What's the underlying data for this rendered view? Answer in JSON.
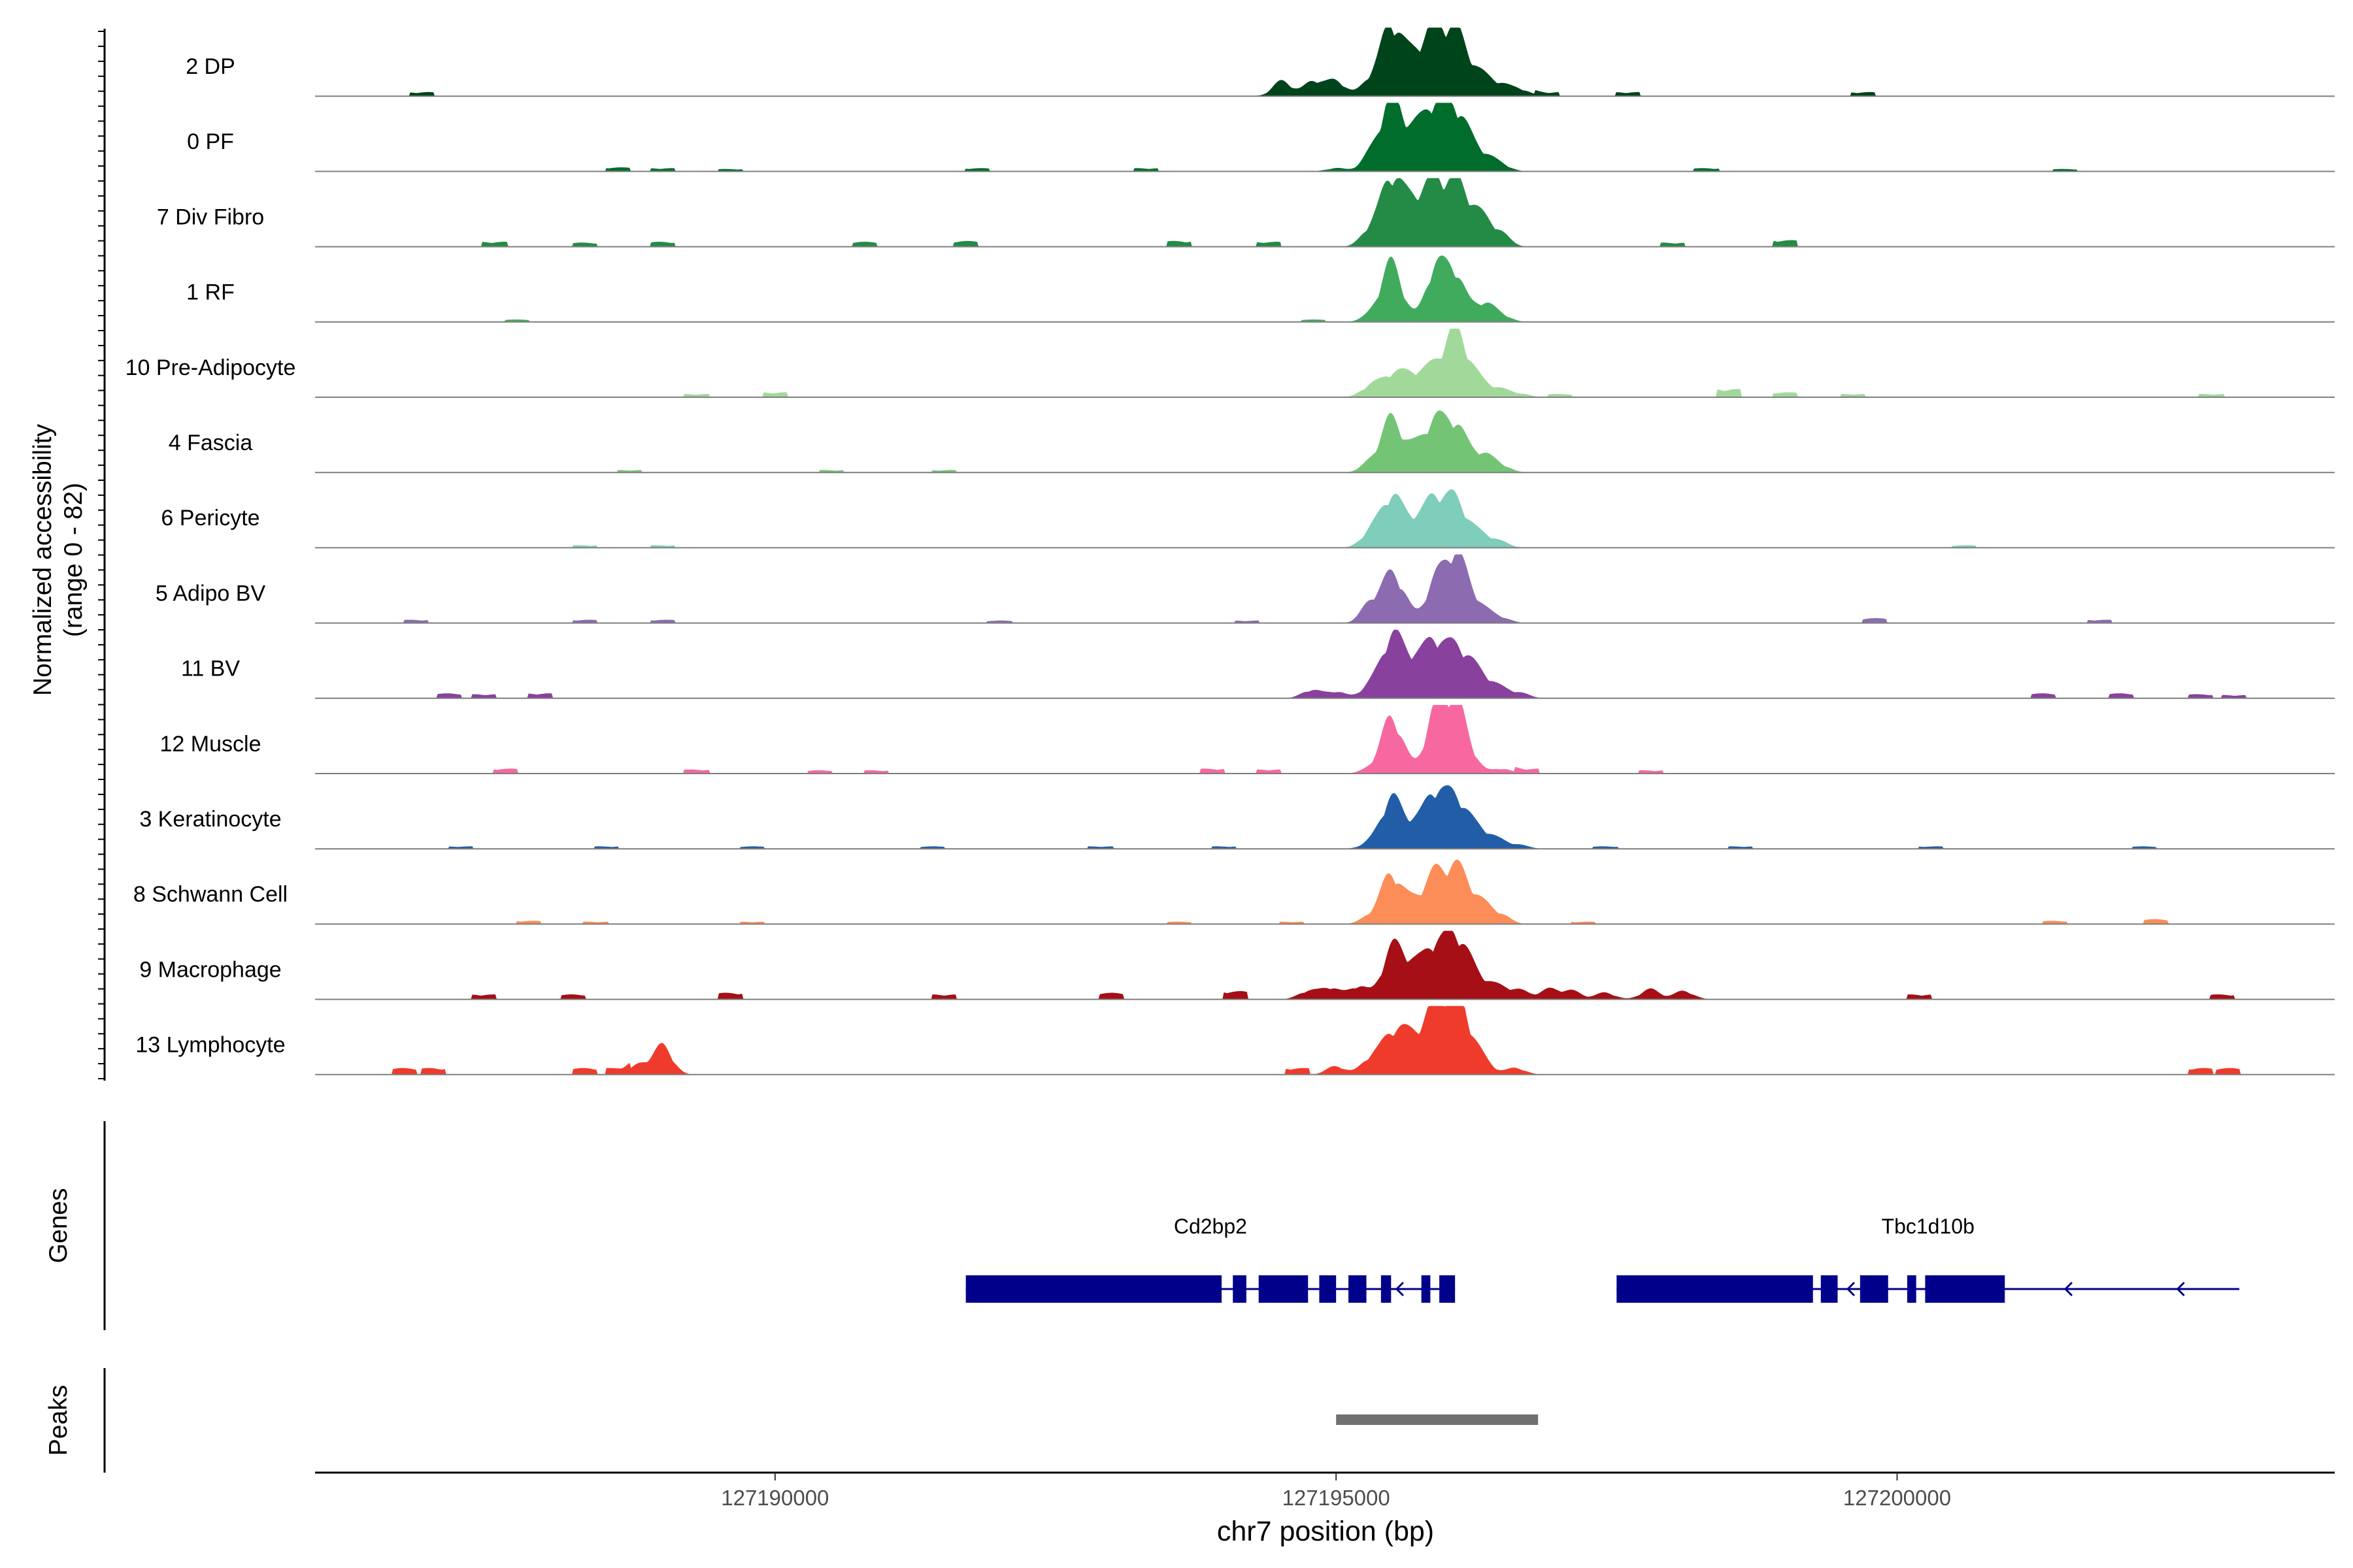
{
  "chart_data": {
    "type": "area",
    "title": "",
    "ylabel": "Normalized accessibility",
    "ylabel_range": "(range 0 - 82)",
    "y_range": [
      0,
      82
    ],
    "xlabel": "chr7 position (bp)",
    "x_range": [
      127185900,
      127203900
    ],
    "x_ticks": [
      127190000,
      127195000,
      127200000
    ],
    "x_tick_labels": [
      "127190000",
      "127195000",
      "127200000"
    ],
    "grid": false,
    "legend": "none",
    "tracks": [
      {
        "label": "2 DP",
        "color": "#00441b",
        "peaks": [
          [
            127194520,
            18
          ],
          [
            127194800,
            18
          ],
          [
            127195000,
            18
          ],
          [
            127195310,
            20
          ],
          [
            127195480,
            74
          ],
          [
            127195590,
            26
          ],
          [
            127195720,
            40
          ],
          [
            127195880,
            74
          ],
          [
            127196050,
            66
          ],
          [
            127196180,
            28
          ],
          [
            127196320,
            18
          ],
          [
            127196470,
            12
          ],
          [
            127196640,
            8
          ]
        ],
        "noise": [
          [
            127186850,
            5
          ],
          [
            127196880,
            5
          ],
          [
            127197600,
            5
          ],
          [
            127199700,
            5
          ]
        ]
      },
      {
        "label": "0 PF",
        "color": "#006d2c",
        "peaks": [
          [
            127195000,
            4
          ],
          [
            127195310,
            20
          ],
          [
            127195480,
            76
          ],
          [
            127195590,
            26
          ],
          [
            127195720,
            40
          ],
          [
            127195880,
            72
          ],
          [
            127196050,
            64
          ],
          [
            127196180,
            28
          ],
          [
            127196320,
            16
          ],
          [
            127196470,
            8
          ]
        ],
        "noise": [
          [
            127188600,
            5
          ],
          [
            127189000,
            4
          ],
          [
            127189600,
            3
          ],
          [
            127191800,
            4
          ],
          [
            127193300,
            4
          ],
          [
            127198300,
            4
          ],
          [
            127201500,
            3
          ]
        ]
      },
      {
        "label": "7 Div Fibro",
        "color": "#238b45",
        "peaks": [
          [
            127195310,
            22
          ],
          [
            127195480,
            70
          ],
          [
            127195590,
            30
          ],
          [
            127195720,
            44
          ],
          [
            127195880,
            70
          ],
          [
            127196050,
            62
          ],
          [
            127196180,
            36
          ],
          [
            127196320,
            26
          ],
          [
            127196470,
            14
          ]
        ],
        "noise": [
          [
            127187500,
            6
          ],
          [
            127188300,
            5
          ],
          [
            127189000,
            6
          ],
          [
            127190800,
            6
          ],
          [
            127191700,
            7
          ],
          [
            127193600,
            7
          ],
          [
            127194400,
            6
          ],
          [
            127198000,
            5
          ],
          [
            127199000,
            8
          ]
        ]
      },
      {
        "label": "1 RF",
        "color": "#41ab5d",
        "peaks": [
          [
            127195310,
            8
          ],
          [
            127195480,
            64
          ],
          [
            127195590,
            14
          ],
          [
            127195880,
            62
          ],
          [
            127196050,
            56
          ],
          [
            127196180,
            8
          ],
          [
            127196320,
            20
          ],
          [
            127196470,
            8
          ]
        ],
        "noise": [
          [
            127187700,
            3
          ],
          [
            127194800,
            3
          ]
        ]
      },
      {
        "label": "10 Pre-Adipocyte",
        "color": "#a1d99b",
        "peaks": [
          [
            127195310,
            14
          ],
          [
            127195480,
            20
          ],
          [
            127195590,
            16
          ],
          [
            127195720,
            22
          ],
          [
            127195880,
            32
          ],
          [
            127196050,
            70
          ],
          [
            127196180,
            28
          ],
          [
            127196320,
            12
          ],
          [
            127196470,
            8
          ],
          [
            127196640,
            4
          ]
        ],
        "noise": [
          [
            127189300,
            4
          ],
          [
            127190000,
            6
          ],
          [
            127197000,
            4
          ],
          [
            127198500,
            10
          ],
          [
            127199000,
            6
          ],
          [
            127199600,
            4
          ],
          [
            127202800,
            4
          ]
        ]
      },
      {
        "label": "4 Fascia",
        "color": "#74c476",
        "peaks": [
          [
            127195310,
            12
          ],
          [
            127195480,
            56
          ],
          [
            127195590,
            16
          ],
          [
            127195720,
            24
          ],
          [
            127195880,
            56
          ],
          [
            127196050,
            52
          ],
          [
            127196180,
            16
          ],
          [
            127196320,
            18
          ],
          [
            127196470,
            8
          ]
        ],
        "noise": [
          [
            127188700,
            3
          ],
          [
            127190500,
            3
          ],
          [
            127191500,
            3
          ]
        ]
      },
      {
        "label": "6 Pericyte",
        "color": "#7fcdbb",
        "peaks": [
          [
            127195310,
            20
          ],
          [
            127195480,
            52
          ],
          [
            127195590,
            20
          ],
          [
            127195720,
            26
          ],
          [
            127195880,
            54
          ],
          [
            127196050,
            50
          ],
          [
            127196180,
            18
          ],
          [
            127196320,
            12
          ],
          [
            127196470,
            6
          ]
        ],
        "noise": [
          [
            127188300,
            3
          ],
          [
            127189000,
            3
          ],
          [
            127200600,
            3
          ]
        ]
      },
      {
        "label": "5 Adipo BV",
        "color": "#8c6bb1",
        "peaks": [
          [
            127195310,
            24
          ],
          [
            127195480,
            46
          ],
          [
            127195590,
            24
          ],
          [
            127195880,
            48
          ],
          [
            127196050,
            72
          ],
          [
            127196180,
            30
          ],
          [
            127196320,
            12
          ],
          [
            127196470,
            6
          ]
        ],
        "noise": [
          [
            127186800,
            4
          ],
          [
            127188300,
            4
          ],
          [
            127189000,
            4
          ],
          [
            127192000,
            3
          ],
          [
            127194200,
            3
          ],
          [
            127199800,
            6
          ],
          [
            127201800,
            4
          ]
        ]
      },
      {
        "label": "11 BV",
        "color": "#88419d",
        "peaks": [
          [
            127194780,
            10
          ],
          [
            127195000,
            8
          ],
          [
            127195310,
            16
          ],
          [
            127195480,
            60
          ],
          [
            127195590,
            30
          ],
          [
            127195720,
            36
          ],
          [
            127195880,
            62
          ],
          [
            127196050,
            48
          ],
          [
            127196180,
            32
          ],
          [
            127196320,
            20
          ],
          [
            127196470,
            10
          ],
          [
            127196640,
            6
          ]
        ],
        "noise": [
          [
            127187100,
            6
          ],
          [
            127187400,
            5
          ],
          [
            127187900,
            6
          ],
          [
            127201300,
            6
          ],
          [
            127202000,
            6
          ],
          [
            127202700,
            5
          ],
          [
            127203000,
            4
          ]
        ]
      },
      {
        "label": "12 Muscle",
        "color": "#f768a1",
        "peaks": [
          [
            127195310,
            6
          ],
          [
            127195480,
            58
          ],
          [
            127195590,
            18
          ],
          [
            127195880,
            72
          ],
          [
            127196050,
            80
          ],
          [
            127196180,
            24
          ],
          [
            127196470,
            6
          ]
        ],
        "noise": [
          [
            127187600,
            6
          ],
          [
            127189300,
            5
          ],
          [
            127190400,
            4
          ],
          [
            127190900,
            4
          ],
          [
            127193900,
            6
          ],
          [
            127194400,
            5
          ],
          [
            127196700,
            6
          ],
          [
            127197800,
            4
          ]
        ]
      },
      {
        "label": "3 Keratinocyte",
        "color": "#225ea8",
        "peaks": [
          [
            127195310,
            8
          ],
          [
            127195480,
            52
          ],
          [
            127195590,
            18
          ],
          [
            127195720,
            24
          ],
          [
            127195880,
            62
          ],
          [
            127196050,
            52
          ],
          [
            127196180,
            24
          ],
          [
            127196320,
            16
          ],
          [
            127196470,
            8
          ],
          [
            127196640,
            4
          ]
        ],
        "noise": [
          [
            127187200,
            3
          ],
          [
            127188500,
            3
          ],
          [
            127189800,
            3
          ],
          [
            127191400,
            3
          ],
          [
            127192900,
            3
          ],
          [
            127194000,
            3
          ],
          [
            127197400,
            3
          ],
          [
            127198600,
            3
          ],
          [
            127200300,
            3
          ],
          [
            127202200,
            3
          ]
        ]
      },
      {
        "label": "8 Schwann Cell",
        "color": "#fc8d59",
        "peaks": [
          [
            127195310,
            10
          ],
          [
            127195480,
            52
          ],
          [
            127195590,
            16
          ],
          [
            127195720,
            22
          ],
          [
            127195880,
            54
          ],
          [
            127196050,
            56
          ],
          [
            127196180,
            30
          ],
          [
            127196320,
            18
          ],
          [
            127196470,
            10
          ]
        ],
        "noise": [
          [
            127187800,
            4
          ],
          [
            127188400,
            3
          ],
          [
            127189800,
            3
          ],
          [
            127193600,
            3
          ],
          [
            127194600,
            3
          ],
          [
            127197200,
            3
          ],
          [
            127201400,
            4
          ],
          [
            127202300,
            6
          ]
        ]
      },
      {
        "label": "9 Macrophage",
        "color": "#a50f15",
        "peaks": [
          [
            127194750,
            10
          ],
          [
            127194950,
            14
          ],
          [
            127195200,
            16
          ],
          [
            127195480,
            48
          ],
          [
            127195590,
            30
          ],
          [
            127195720,
            30
          ],
          [
            127195880,
            58
          ],
          [
            127196050,
            64
          ],
          [
            127196180,
            32
          ],
          [
            127196320,
            16
          ],
          [
            127196470,
            12
          ],
          [
            127196640,
            10
          ],
          [
            127196900,
            12
          ],
          [
            127197100,
            10
          ],
          [
            127197400,
            8
          ],
          [
            127197800,
            12
          ],
          [
            127198100,
            10
          ]
        ],
        "noise": [
          [
            127187400,
            6
          ],
          [
            127188200,
            6
          ],
          [
            127189600,
            8
          ],
          [
            127191500,
            6
          ],
          [
            127193000,
            8
          ],
          [
            127194100,
            10
          ],
          [
            127200200,
            6
          ],
          [
            127202900,
            6
          ]
        ]
      },
      {
        "label": "13 Lymphocyte",
        "color": "#ef3b2c",
        "peaks": [
          [
            127189000,
            34
          ],
          [
            127188800,
            12
          ],
          [
            127195000,
            10
          ],
          [
            127195310,
            20
          ],
          [
            127195480,
            36
          ],
          [
            127195590,
            30
          ],
          [
            127195720,
            34
          ],
          [
            127195880,
            74
          ],
          [
            127196050,
            86
          ],
          [
            127196180,
            36
          ],
          [
            127196320,
            14
          ],
          [
            127196600,
            8
          ]
        ],
        "noise": [
          [
            127186700,
            8
          ],
          [
            127186950,
            8
          ],
          [
            127188300,
            8
          ],
          [
            127188600,
            8
          ],
          [
            127194650,
            8
          ],
          [
            127202700,
            8
          ],
          [
            127202950,
            8
          ]
        ]
      }
    ],
    "genes": [
      {
        "name": "Cd2bp2",
        "start": 127191700,
        "end": 127196060,
        "strand": "-",
        "utr": [
          [
            127191700,
            127193980
          ]
        ],
        "exons": [
          [
            127194080,
            127194200
          ],
          [
            127194310,
            127194750
          ],
          [
            127194850,
            127195000
          ],
          [
            127195110,
            127195270
          ],
          [
            127195400,
            127195490
          ],
          [
            127195760,
            127195840
          ],
          [
            127195920,
            127196060
          ]
        ],
        "arrows": [
          127194630,
          127195540
        ]
      },
      {
        "name": "Tbc1d10b",
        "start": 127197500,
        "end": 127203050,
        "strand": "-",
        "utr": [
          [
            127197500,
            127199250
          ]
        ],
        "exons": [
          [
            127199320,
            127199470
          ],
          [
            127199670,
            127199920
          ],
          [
            127200090,
            127200170
          ],
          [
            127200250,
            127200960
          ]
        ],
        "arrows": [
          127199560,
          127201500,
          127202500
        ]
      }
    ],
    "peaks_track": [
      {
        "start": 127195000,
        "end": 127196800
      }
    ],
    "track_titles": [
      "Genes",
      "Peaks"
    ]
  }
}
